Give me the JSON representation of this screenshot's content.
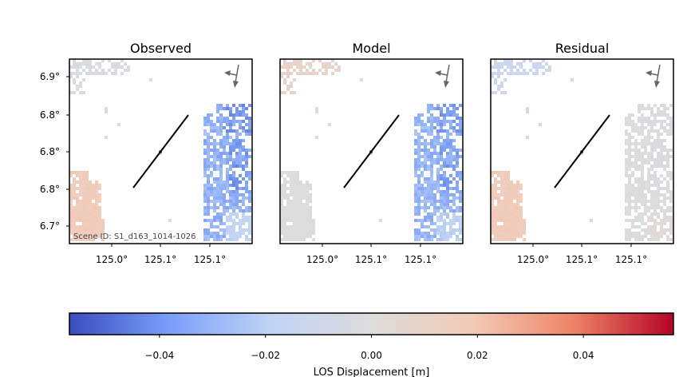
{
  "chart_data": {
    "type": "heatmap",
    "panels": [
      {
        "title": "Observed",
        "scene_label": "Scene ID: S1_d163_1014-1026",
        "region_values": [
          -0.038,
          -0.031,
          -0.017,
          0.017,
          -0.003
        ]
      },
      {
        "title": "Model",
        "scene_label": "",
        "region_values": [
          -0.036,
          -0.03,
          -0.02,
          0.0,
          0.01
        ]
      },
      {
        "title": "Residual",
        "scene_label": "",
        "region_values": [
          -0.002,
          -0.001,
          0.002,
          0.017,
          -0.012
        ]
      }
    ],
    "y_ticks": [
      "6.9°",
      "6.8°",
      "6.8°",
      "6.8°",
      "6.7°"
    ],
    "x_ticks": [
      "125.0°",
      "125.1°",
      "125.1°"
    ],
    "colorbar": {
      "label": "LOS Displacement [m]",
      "ticks": [
        "−0.04",
        "−0.02",
        "0.00",
        "0.02",
        "0.04"
      ],
      "tick_values": [
        -0.04,
        -0.02,
        0.0,
        0.02,
        0.04
      ],
      "vmin": -0.057,
      "vmax": 0.057,
      "colormap": "coolwarm",
      "colors": [
        "#3b4cc0",
        "#7b9ff9",
        "#c0d4f5",
        "#dddcdc",
        "#f2cbb7",
        "#ee8468",
        "#b40426"
      ]
    },
    "fault_trace": "black line",
    "grid": false
  }
}
